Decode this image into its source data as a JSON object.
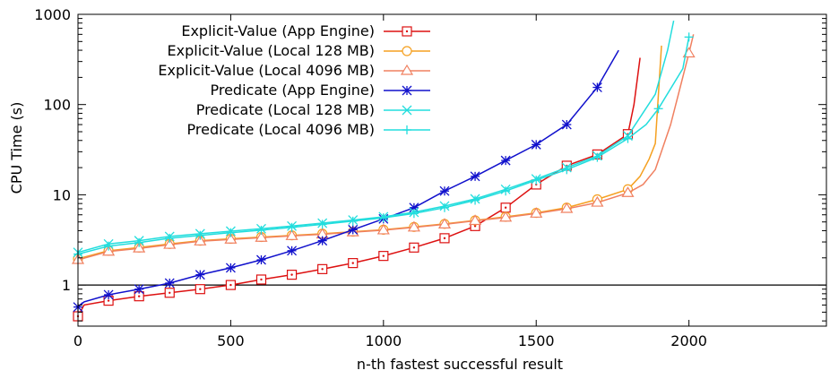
{
  "chart_data": {
    "type": "line",
    "title": "",
    "xlabel": "n-th fastest successful result",
    "ylabel": "CPU Time (s)",
    "xlim": [
      0,
      2450
    ],
    "ylim": [
      0.35,
      1000
    ],
    "y_scale": "log",
    "x_ticks": [
      0,
      500,
      1000,
      1500,
      2000
    ],
    "x_tick_labels": [
      "0",
      "500",
      "1000",
      "1500",
      "2000"
    ],
    "y_ticks": [
      1,
      10,
      100,
      1000
    ],
    "y_tick_labels": [
      "1",
      "10",
      "100",
      "1000"
    ],
    "grid": false,
    "reference_line_y": 1,
    "legend_position": "top-left",
    "series": [
      {
        "name": "Explicit-Value (App Engine)",
        "color": "#dd1111",
        "marker": "square-dot",
        "x": [
          0,
          20,
          100,
          200,
          300,
          400,
          500,
          600,
          700,
          800,
          900,
          1000,
          1100,
          1200,
          1300,
          1400,
          1500,
          1600,
          1700,
          1800,
          1820,
          1840
        ],
        "y": [
          0.45,
          0.6,
          0.67,
          0.75,
          0.82,
          0.9,
          1.0,
          1.15,
          1.3,
          1.5,
          1.75,
          2.1,
          2.6,
          3.3,
          4.5,
          7.2,
          13,
          21,
          28,
          47,
          100,
          330
        ]
      },
      {
        "name": "Explicit-Value (Local   128 MB)",
        "color": "#f5a020",
        "marker": "circle",
        "x": [
          0,
          100,
          200,
          300,
          400,
          500,
          600,
          700,
          800,
          900,
          1000,
          1100,
          1200,
          1300,
          1400,
          1500,
          1600,
          1700,
          1800,
          1840,
          1870,
          1890,
          1910
        ],
        "y": [
          1.95,
          2.4,
          2.6,
          2.85,
          3.1,
          3.25,
          3.4,
          3.55,
          3.7,
          3.9,
          4.1,
          4.4,
          4.75,
          5.2,
          5.7,
          6.3,
          7.2,
          8.9,
          11.5,
          16,
          25,
          37,
          450
        ]
      },
      {
        "name": "Explicit-Value (Local 4096 MB)",
        "color": "#f08060",
        "marker": "triangle",
        "x": [
          0,
          100,
          200,
          300,
          400,
          500,
          600,
          700,
          800,
          900,
          1000,
          1100,
          1200,
          1300,
          1400,
          1500,
          1600,
          1700,
          1800,
          1850,
          1890,
          1940,
          2000,
          2015
        ],
        "y": [
          1.9,
          2.35,
          2.55,
          2.8,
          3.05,
          3.2,
          3.35,
          3.5,
          3.65,
          3.85,
          4.05,
          4.35,
          4.7,
          5.15,
          5.6,
          6.2,
          7.0,
          8.2,
          10.5,
          13,
          19,
          60,
          370,
          600
        ]
      },
      {
        "name": "Predicate (App Engine)",
        "color": "#1010cc",
        "marker": "star",
        "x": [
          0,
          20,
          100,
          200,
          300,
          400,
          500,
          600,
          700,
          800,
          900,
          1000,
          1100,
          1200,
          1300,
          1400,
          1500,
          1600,
          1700,
          1770
        ],
        "y": [
          0.57,
          0.65,
          0.78,
          0.9,
          1.05,
          1.3,
          1.55,
          1.9,
          2.4,
          3.1,
          4.1,
          5.4,
          7.2,
          11,
          16,
          24,
          36,
          60,
          155,
          400
        ]
      },
      {
        "name": "Predicate (Local   128 MB)",
        "color": "#22dddd",
        "marker": "x",
        "x": [
          0,
          100,
          200,
          300,
          400,
          500,
          600,
          700,
          800,
          900,
          1000,
          1100,
          1200,
          1300,
          1400,
          1500,
          1600,
          1700,
          1800,
          1890,
          1930,
          1950
        ],
        "y": [
          2.3,
          2.85,
          3.1,
          3.45,
          3.7,
          3.95,
          4.2,
          4.5,
          4.85,
          5.25,
          5.7,
          6.4,
          7.5,
          9.0,
          11.5,
          15,
          20,
          27,
          45,
          130,
          400,
          850
        ]
      },
      {
        "name": "Predicate (Local 4096 MB)",
        "color": "#22dddd",
        "marker": "plus",
        "x": [
          0,
          100,
          200,
          300,
          400,
          500,
          600,
          700,
          800,
          900,
          1000,
          1100,
          1200,
          1300,
          1400,
          1500,
          1600,
          1700,
          1800,
          1860,
          1900,
          1980,
          2000
        ],
        "y": [
          2.2,
          2.7,
          2.95,
          3.3,
          3.55,
          3.8,
          4.05,
          4.35,
          4.7,
          5.1,
          5.55,
          6.2,
          7.2,
          8.7,
          11,
          14.5,
          19,
          26,
          42,
          60,
          90,
          250,
          560
        ]
      }
    ]
  }
}
